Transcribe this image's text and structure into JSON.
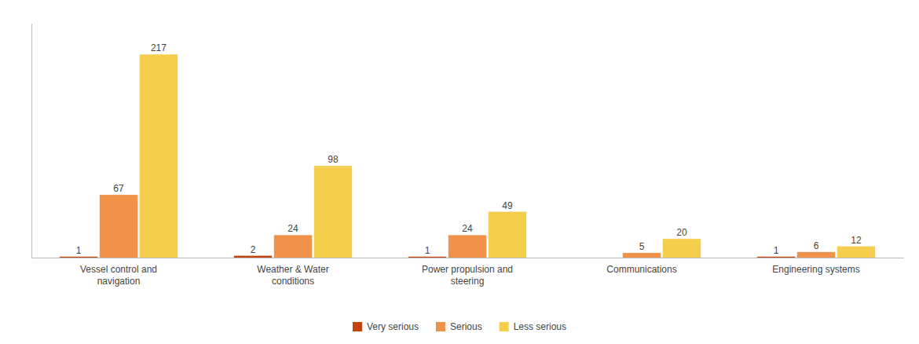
{
  "chart_data": {
    "type": "bar",
    "categories": [
      "Vessel control and\nnavigation",
      "Weather & Water\nconditions",
      "Power propulsion and\nsteering",
      "Communications",
      "Engineering systems"
    ],
    "series": [
      {
        "name": "Very serious",
        "color": "#C1440E",
        "values": [
          1,
          2,
          1,
          0,
          1
        ],
        "value_labels": [
          "1",
          "2",
          "1",
          null,
          "1"
        ]
      },
      {
        "name": "Serious",
        "color": "#F0924A",
        "values": [
          67,
          24,
          24,
          5,
          6
        ]
      },
      {
        "name": "Less serious",
        "color": "#F5CE4E",
        "values": [
          217,
          98,
          49,
          20,
          12
        ]
      }
    ],
    "ylim": [
      0,
      250
    ],
    "grid": false,
    "legend": "bottom",
    "data_labels": true,
    "tick_labels": "x"
  }
}
